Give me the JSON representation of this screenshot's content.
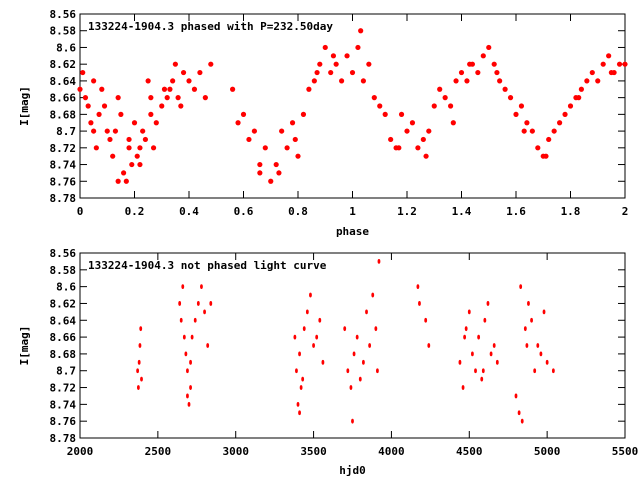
{
  "chart_data": [
    {
      "type": "scatter",
      "title": "133224-1904.3 phased with P=232.50day",
      "xlabel": "phase",
      "ylabel": "I[mag]",
      "xlim": [
        0,
        2
      ],
      "ylim": [
        8.78,
        8.56
      ],
      "y_inverted": true,
      "xticks": [
        0,
        0.2,
        0.4,
        0.6,
        0.8,
        1,
        1.2,
        1.4,
        1.6,
        1.8,
        2
      ],
      "xtick_labels": [
        "0",
        "0.2",
        "0.4",
        "0.6",
        "0.8",
        "1",
        "1.2",
        "1.4",
        "1.6",
        "1.8",
        "2"
      ],
      "yticks": [
        8.56,
        8.58,
        8.6,
        8.62,
        8.64,
        8.66,
        8.68,
        8.7,
        8.72,
        8.74,
        8.76,
        8.78
      ],
      "ytick_labels": [
        "8.56",
        "8.58",
        "8.6",
        "8.62",
        "8.64",
        "8.66",
        "8.68",
        "8.7",
        "8.72",
        "8.74",
        "8.76",
        "8.78"
      ],
      "grid": false,
      "marker_color": "#ff0000",
      "series": [
        {
          "x": [
            0.0,
            0.01,
            0.02,
            0.03,
            0.04,
            0.05,
            0.06,
            0.07,
            0.08,
            0.09,
            0.1,
            0.11,
            0.12,
            0.13,
            0.14,
            0.15,
            0.16,
            0.17,
            0.18,
            0.19,
            0.2,
            0.21,
            0.22,
            0.23,
            0.24,
            0.25,
            0.26,
            0.27,
            0.28,
            0.3,
            0.32,
            0.33,
            0.34,
            0.35,
            0.36,
            0.38,
            0.4,
            0.42,
            0.44,
            0.46,
            0.48,
            0.56,
            0.58,
            0.6,
            0.62,
            0.64,
            0.66,
            0.68,
            0.7,
            0.72,
            0.74,
            0.76,
            0.78,
            0.8,
            0.82,
            0.84,
            0.86,
            0.88,
            0.9,
            0.92,
            0.94,
            0.96,
            0.98,
            1.0,
            1.02,
            1.04,
            1.06,
            1.08,
            1.1,
            1.12,
            1.14,
            1.16,
            1.18,
            1.2,
            1.22,
            1.24,
            1.26,
            1.28,
            1.3,
            1.32,
            1.34,
            1.36,
            1.38,
            1.4,
            1.42,
            1.44,
            1.46,
            1.48,
            1.5,
            1.52,
            1.54,
            1.56,
            1.58,
            1.6,
            1.62,
            1.64,
            1.66,
            1.68,
            1.7,
            1.72,
            1.74,
            1.76,
            1.78,
            1.8,
            1.82,
            1.84,
            1.86,
            1.88,
            1.9,
            1.92,
            1.94,
            1.96,
            1.98,
            2.0,
            0.05,
            0.14,
            0.18,
            0.22,
            0.26,
            0.31,
            0.37,
            0.66,
            0.73,
            0.79,
            0.87,
            0.93,
            1.03,
            1.17,
            1.27,
            1.37,
            1.43,
            1.53,
            1.63,
            1.71,
            1.83,
            1.95
          ],
          "y": [
            8.65,
            8.63,
            8.66,
            8.67,
            8.69,
            8.64,
            8.72,
            8.68,
            8.65,
            8.67,
            8.7,
            8.71,
            8.73,
            8.7,
            8.66,
            8.68,
            8.75,
            8.76,
            8.71,
            8.74,
            8.69,
            8.73,
            8.72,
            8.7,
            8.71,
            8.64,
            8.68,
            8.72,
            8.69,
            8.67,
            8.66,
            8.65,
            8.64,
            8.62,
            8.66,
            8.63,
            8.64,
            8.65,
            8.63,
            8.66,
            8.62,
            8.65,
            8.69,
            8.68,
            8.71,
            8.7,
            8.75,
            8.72,
            8.76,
            8.74,
            8.7,
            8.72,
            8.69,
            8.73,
            8.68,
            8.65,
            8.64,
            8.62,
            8.6,
            8.63,
            8.62,
            8.64,
            8.61,
            8.63,
            8.6,
            8.64,
            8.62,
            8.66,
            8.67,
            8.68,
            8.71,
            8.72,
            8.68,
            8.7,
            8.69,
            8.72,
            8.71,
            8.7,
            8.67,
            8.65,
            8.66,
            8.67,
            8.64,
            8.63,
            8.64,
            8.62,
            8.63,
            8.61,
            8.6,
            8.62,
            8.64,
            8.65,
            8.66,
            8.68,
            8.67,
            8.69,
            8.7,
            8.72,
            8.73,
            8.71,
            8.7,
            8.69,
            8.68,
            8.67,
            8.66,
            8.65,
            8.64,
            8.63,
            8.64,
            8.62,
            8.61,
            8.63,
            8.62,
            8.62,
            8.7,
            8.76,
            8.72,
            8.74,
            8.66,
            8.65,
            8.67,
            8.74,
            8.75,
            8.71,
            8.63,
            8.61,
            8.58,
            8.72,
            8.73,
            8.69,
            8.62,
            8.63,
            8.7,
            8.73,
            8.66,
            8.63
          ]
        }
      ]
    },
    {
      "type": "scatter",
      "title": "133224-1904.3 not phased light curve",
      "xlabel": "hjd0",
      "ylabel": "I[mag]",
      "xlim": [
        2000,
        5500
      ],
      "ylim": [
        8.78,
        8.56
      ],
      "y_inverted": true,
      "xticks": [
        2000,
        2500,
        3000,
        3500,
        4000,
        4500,
        5000,
        5500
      ],
      "xtick_labels": [
        "2000",
        "2500",
        "3000",
        "3500",
        "4000",
        "4500",
        "5000",
        "5500"
      ],
      "yticks": [
        8.56,
        8.58,
        8.6,
        8.62,
        8.64,
        8.66,
        8.68,
        8.7,
        8.72,
        8.74,
        8.76,
        8.78
      ],
      "ytick_labels": [
        "8.56",
        "8.58",
        "8.6",
        "8.62",
        "8.64",
        "8.66",
        "8.68",
        "8.7",
        "8.72",
        "8.74",
        "8.76",
        "8.78"
      ],
      "grid": false,
      "marker_color": "#ff0000",
      "series": [
        {
          "x": [
            2370,
            2375,
            2380,
            2385,
            2390,
            2395,
            2640,
            2650,
            2660,
            2670,
            2680,
            2690,
            2700,
            2710,
            2720,
            2740,
            2760,
            2780,
            2800,
            2820,
            2840,
            3380,
            3390,
            3400,
            3410,
            3420,
            3440,
            3460,
            3480,
            3500,
            3520,
            3540,
            3560,
            3700,
            3720,
            3740,
            3760,
            3780,
            3800,
            3820,
            3840,
            3860,
            3880,
            3900,
            3920,
            4170,
            4180,
            4220,
            4240,
            4440,
            4460,
            4480,
            4500,
            4520,
            4540,
            4560,
            4580,
            4600,
            4620,
            4640,
            4660,
            4680,
            4800,
            4820,
            4840,
            4860,
            4880,
            4900,
            4920,
            4940,
            4960,
            4980,
            5000,
            5040,
            2690,
            2710,
            3410,
            3430,
            3750,
            3910,
            4470,
            4590,
            4830,
            4870
          ],
          "y": [
            8.7,
            8.72,
            8.69,
            8.67,
            8.65,
            8.71,
            8.62,
            8.64,
            8.6,
            8.66,
            8.68,
            8.7,
            8.74,
            8.72,
            8.66,
            8.64,
            8.62,
            8.6,
            8.63,
            8.67,
            8.62,
            8.66,
            8.7,
            8.74,
            8.68,
            8.72,
            8.65,
            8.63,
            8.61,
            8.67,
            8.66,
            8.64,
            8.69,
            8.65,
            8.7,
            8.72,
            8.68,
            8.66,
            8.71,
            8.69,
            8.63,
            8.67,
            8.61,
            8.65,
            8.57,
            8.6,
            8.62,
            8.64,
            8.67,
            8.69,
            8.72,
            8.65,
            8.63,
            8.68,
            8.7,
            8.66,
            8.71,
            8.64,
            8.62,
            8.68,
            8.67,
            8.69,
            8.73,
            8.75,
            8.76,
            8.65,
            8.62,
            8.64,
            8.7,
            8.67,
            8.68,
            8.63,
            8.69,
            8.7,
            8.73,
            8.69,
            8.75,
            8.71,
            8.76,
            8.7,
            8.66,
            8.7,
            8.6,
            8.67
          ]
        }
      ]
    }
  ]
}
